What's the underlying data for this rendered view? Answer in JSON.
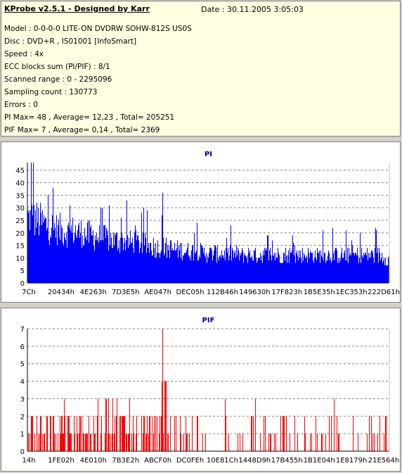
{
  "header": {
    "app_title": "KProbe v2.5.1 - Designed by Karr",
    "date": "Date : 30.11.2005 3:05:03",
    "lines": [
      "Model : 0-0-0-0 LITE-ON DVDRW SOHW-812S  US0S",
      "Disc : DVD+R , IS01001 [InfoSmart]",
      "Speed : 4x",
      "ECC blocks sum (PI/PIF) : 8/1",
      "Scanned range : 0 - 2295096",
      "Sampling count : 130773",
      "Errors : 0",
      "PI Max= 48 , Average= 12,23 , Total= 205251",
      "PIF Max= 7 , Average= 0,14 , Total= 2369"
    ]
  },
  "chart_data": [
    {
      "type": "bar",
      "title": "PI",
      "color": "#0000ff",
      "ylim": [
        0,
        48
      ],
      "yticks": [
        0,
        5,
        10,
        15,
        20,
        25,
        30,
        35,
        40,
        45
      ],
      "xtick_labels": [
        "7Ch",
        "20434h",
        "4E263h",
        "7D3E5h",
        "AE047h",
        "DEC05h",
        "112B46h",
        "149630h",
        "17F823h",
        "1B5E35h",
        "1EC353h",
        "222D61h"
      ],
      "profile": [
        [
          0,
          33
        ],
        [
          0.03,
          31
        ],
        [
          0.06,
          28
        ],
        [
          0.1,
          26
        ],
        [
          0.15,
          25
        ],
        [
          0.2,
          23
        ],
        [
          0.25,
          21
        ],
        [
          0.3,
          20
        ],
        [
          0.35,
          18
        ],
        [
          0.4,
          17
        ],
        [
          0.45,
          16
        ],
        [
          0.5,
          15
        ],
        [
          0.6,
          14
        ],
        [
          0.7,
          14
        ],
        [
          0.8,
          14
        ],
        [
          0.9,
          14
        ],
        [
          0.97,
          14
        ],
        [
          1.0,
          12
        ]
      ],
      "max": 48,
      "average": 12.23
    },
    {
      "type": "bar",
      "title": "PIF",
      "color": "#ff0000",
      "ylim": [
        0,
        7
      ],
      "yticks": [
        0,
        1,
        2,
        3,
        4,
        5,
        6,
        7
      ],
      "xtick_labels": [
        "14h",
        "1FE02h",
        "4E010h",
        "7B3E2h",
        "ABCF0h",
        "DC0FEh",
        "10E81Ch",
        "1448D9h",
        "17B455h",
        "1B1E04h",
        "1E8179h",
        "21E564h"
      ],
      "max": 7,
      "average": 0.14
    }
  ]
}
